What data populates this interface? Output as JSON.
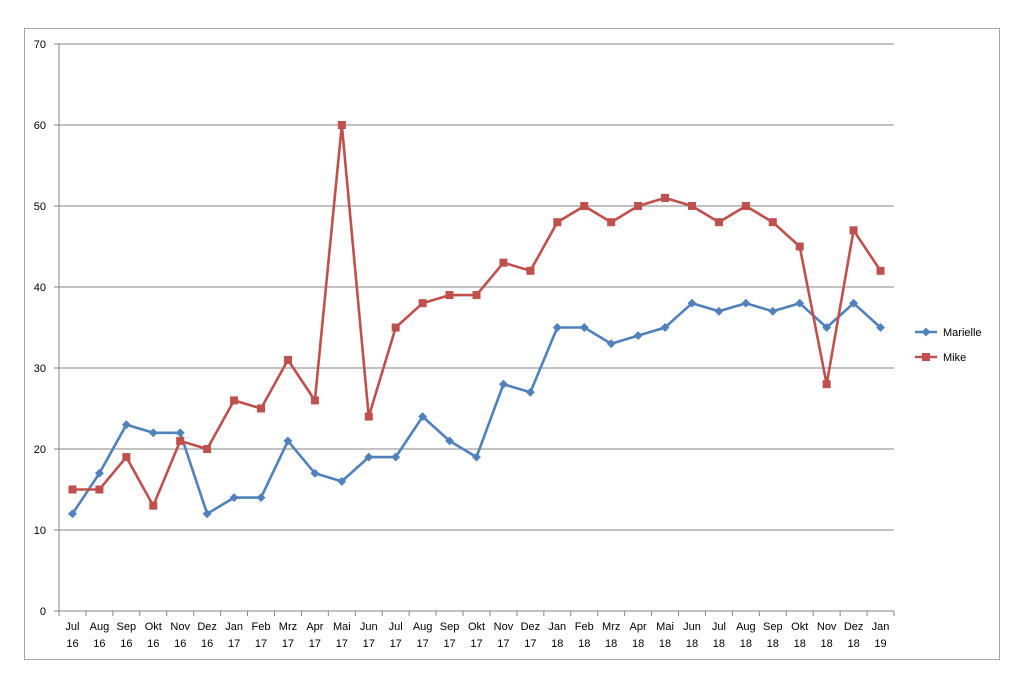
{
  "chart_data": {
    "type": "line",
    "title": "",
    "xlabel": "",
    "ylabel": "",
    "ylim": [
      0,
      70
    ],
    "y_ticks": [
      0,
      10,
      20,
      30,
      40,
      50,
      60,
      70
    ],
    "grid": "horizontal major gridlines",
    "legend_position": "right",
    "categories": [
      [
        "Jul",
        "16"
      ],
      [
        "Aug",
        "16"
      ],
      [
        "Sep",
        "16"
      ],
      [
        "Okt",
        "16"
      ],
      [
        "Nov",
        "16"
      ],
      [
        "Dez",
        "16"
      ],
      [
        "Jan",
        "17"
      ],
      [
        "Feb",
        "17"
      ],
      [
        "Mrz",
        "17"
      ],
      [
        "Apr",
        "17"
      ],
      [
        "Mai",
        "17"
      ],
      [
        "Jun",
        "17"
      ],
      [
        "Jul",
        "17"
      ],
      [
        "Aug",
        "17"
      ],
      [
        "Sep",
        "17"
      ],
      [
        "Okt",
        "17"
      ],
      [
        "Nov",
        "17"
      ],
      [
        "Dez",
        "17"
      ],
      [
        "Jan",
        "18"
      ],
      [
        "Feb",
        "18"
      ],
      [
        "Mrz",
        "18"
      ],
      [
        "Apr",
        "18"
      ],
      [
        "Mai",
        "18"
      ],
      [
        "Jun",
        "18"
      ],
      [
        "Jul",
        "18"
      ],
      [
        "Aug",
        "18"
      ],
      [
        "Sep",
        "18"
      ],
      [
        "Okt",
        "18"
      ],
      [
        "Nov",
        "18"
      ],
      [
        "Dez",
        "18"
      ],
      [
        "Jan",
        "19"
      ]
    ],
    "series": [
      {
        "name": "Marielle",
        "color": "#4f81bd",
        "marker": "diamond",
        "values": [
          12,
          17,
          23,
          22,
          22,
          12,
          14,
          14,
          21,
          17,
          16,
          19,
          19,
          24,
          21,
          19,
          28,
          27,
          35,
          35,
          33,
          34,
          35,
          38,
          37,
          38,
          37,
          38,
          35,
          38,
          35
        ]
      },
      {
        "name": "Mike",
        "color": "#c0504d",
        "marker": "square",
        "values": [
          15,
          15,
          19,
          13,
          21,
          20,
          26,
          25,
          31,
          26,
          60,
          24,
          35,
          38,
          39,
          39,
          43,
          42,
          48,
          50,
          48,
          50,
          51,
          50,
          48,
          50,
          48,
          45,
          28,
          47,
          42
        ]
      }
    ]
  }
}
